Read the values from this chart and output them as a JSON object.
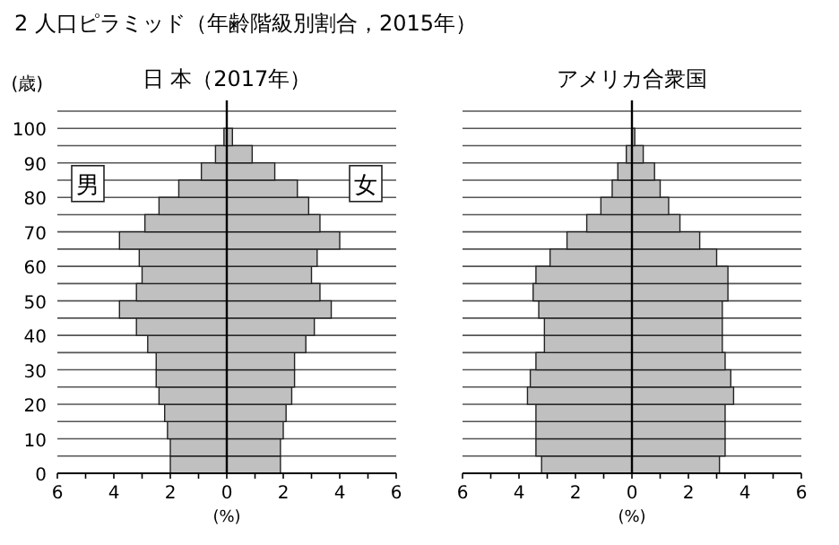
{
  "chart_data": [
    {
      "type": "bar",
      "title": "2 人口ピラミッド（年齢階級別割合，2015年）",
      "subtitle": "日 本（2017年）",
      "xlabel": "(%)",
      "ylabel": "(歳)",
      "orientation": "horizontal",
      "stacked": true,
      "grid": "y",
      "legend": false,
      "x": [
        2.5,
        7.5,
        12.5,
        17.5,
        22.5,
        27.5,
        32.5,
        37.5,
        42.5,
        47.5,
        52.5,
        57.5,
        62.5,
        67.5,
        72.5,
        77.5,
        82.5,
        87.5,
        92.5,
        97.5,
        102.5
      ],
      "xlim": [
        -6,
        6
      ],
      "xticks": [
        {
          "value": -6,
          "label": "6"
        },
        {
          "value": -5,
          "label": null
        },
        {
          "value": -4,
          "label": "4"
        },
        {
          "value": -3,
          "label": null
        },
        {
          "value": -2,
          "label": "2"
        },
        {
          "value": -1,
          "label": null
        },
        0,
        {
          "value": 1,
          "label": null
        },
        2,
        {
          "value": 3,
          "label": null
        },
        4,
        {
          "value": 5,
          "label": null
        },
        6
      ],
      "ylim": [
        0,
        105
      ],
      "yticks": [
        0,
        {
          "value": 5,
          "label": null
        },
        10,
        {
          "value": 15,
          "label": null
        },
        20,
        {
          "value": 25,
          "label": null
        },
        30,
        {
          "value": 35,
          "label": null
        },
        40,
        {
          "value": 45,
          "label": null
        },
        50,
        {
          "value": 55,
          "label": null
        },
        60,
        {
          "value": 65,
          "label": null
        },
        70,
        {
          "value": 75,
          "label": null
        },
        80,
        {
          "value": 85,
          "label": null
        },
        90,
        {
          "value": 95,
          "label": null
        },
        100,
        {
          "value": 105,
          "label": null
        }
      ],
      "series": [
        {
          "name": "男",
          "color": "#c0c0c0",
          "values": [
            -2.0,
            -2.0,
            -2.1,
            -2.2,
            -2.4,
            -2.5,
            -2.5,
            -2.8,
            -3.2,
            -3.8,
            -3.2,
            -3.0,
            -3.1,
            -3.8,
            -2.9,
            -2.4,
            -1.7,
            -0.9,
            -0.4,
            -0.1,
            0
          ]
        },
        {
          "name": "女",
          "color": "#c0c0c0",
          "values": [
            1.9,
            1.9,
            2.0,
            2.1,
            2.3,
            2.4,
            2.4,
            2.8,
            3.1,
            3.7,
            3.3,
            3.0,
            3.2,
            4.0,
            3.3,
            2.9,
            2.5,
            1.7,
            0.9,
            0.2,
            0
          ]
        }
      ]
    },
    {
      "type": "bar",
      "title": "アメリカ合衆国",
      "xlabel": "(%)",
      "orientation": "horizontal",
      "stacked": true,
      "grid": "y",
      "tick_labels": "x",
      "x": [
        2.5,
        7.5,
        12.5,
        17.5,
        22.5,
        27.5,
        32.5,
        37.5,
        42.5,
        47.5,
        52.5,
        57.5,
        62.5,
        67.5,
        72.5,
        77.5,
        82.5,
        87.5,
        92.5,
        97.5,
        102.5
      ],
      "xlim": [
        -6,
        6
      ],
      "xticks": [
        {
          "value": -6,
          "label": "6"
        },
        {
          "value": -5,
          "label": null
        },
        {
          "value": -4,
          "label": "4"
        },
        {
          "value": -3,
          "label": null
        },
        {
          "value": -2,
          "label": "2"
        },
        {
          "value": -1,
          "label": null
        },
        0,
        {
          "value": 1,
          "label": null
        },
        2,
        {
          "value": 3,
          "label": null
        },
        4,
        {
          "value": 5,
          "label": null
        },
        6
      ],
      "ylim": [
        0,
        105
      ],
      "yticks": [
        0,
        {
          "value": 5,
          "label": null
        },
        10,
        {
          "value": 15,
          "label": null
        },
        20,
        {
          "value": 25,
          "label": null
        },
        30,
        {
          "value": 35,
          "label": null
        },
        40,
        {
          "value": 45,
          "label": null
        },
        50,
        {
          "value": 55,
          "label": null
        },
        60,
        {
          "value": 65,
          "label": null
        },
        70,
        {
          "value": 75,
          "label": null
        },
        80,
        {
          "value": 85,
          "label": null
        },
        90,
        {
          "value": 95,
          "label": null
        },
        100,
        {
          "value": 105,
          "label": null
        }
      ],
      "series": [
        {
          "color": "#c0c0c0",
          "values": [
            -3.2,
            -3.4,
            -3.4,
            -3.4,
            -3.7,
            -3.6,
            -3.4,
            -3.1,
            -3.1,
            -3.3,
            -3.5,
            -3.4,
            -2.9,
            -2.3,
            -1.6,
            -1.1,
            -0.7,
            -0.5,
            -0.2,
            0,
            0
          ]
        },
        {
          "color": "#c0c0c0",
          "values": [
            3.1,
            3.3,
            3.3,
            3.3,
            3.6,
            3.5,
            3.3,
            3.2,
            3.2,
            3.2,
            3.4,
            3.4,
            3.0,
            2.4,
            1.7,
            1.3,
            1.0,
            0.8,
            0.4,
            0.1,
            0
          ]
        }
      ]
    }
  ]
}
